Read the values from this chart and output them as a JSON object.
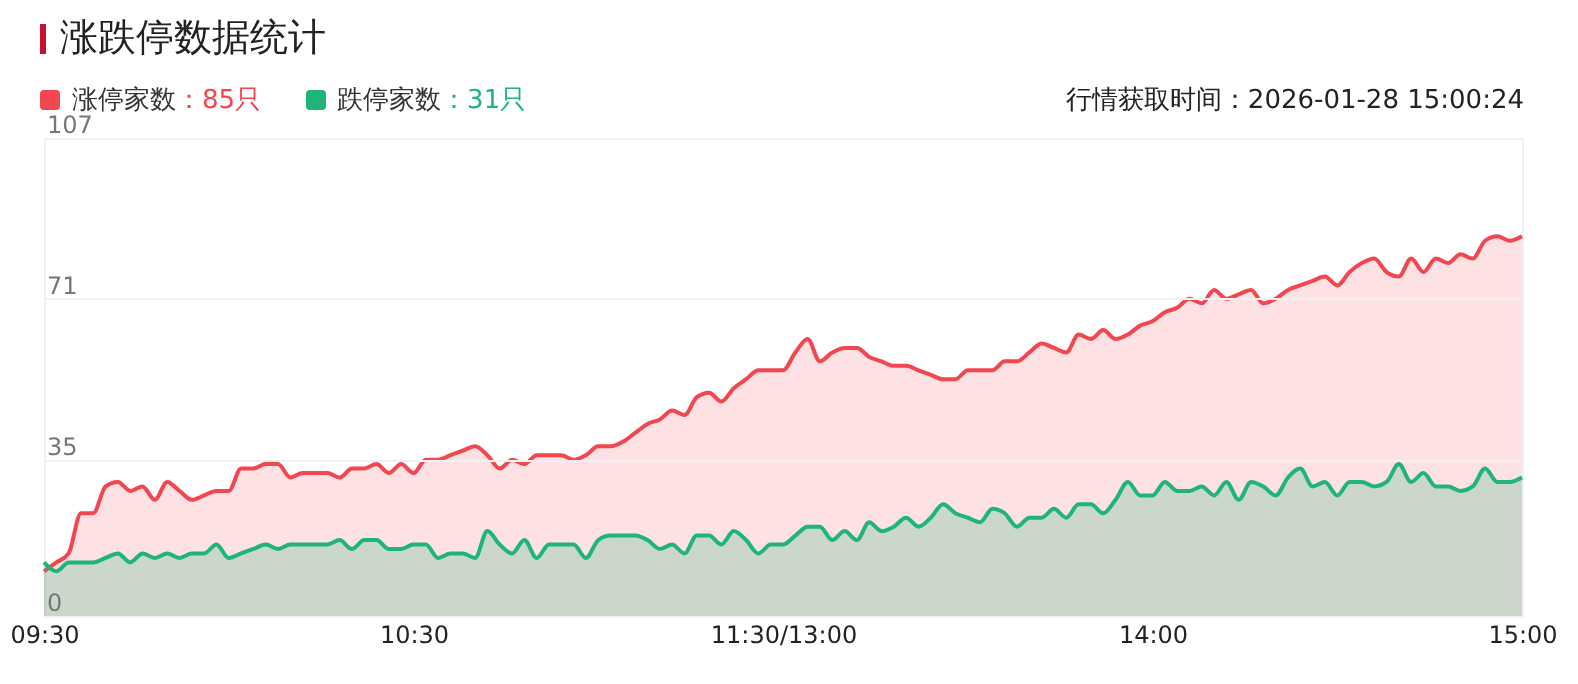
{
  "chart_data": {
    "type": "area",
    "title": "涨跌停数据统计",
    "annotations": [
      "：85只",
      "：31只",
      "行情获取时间：2026-01-28 15:00:24"
    ],
    "categories": [
      "09:30",
      null,
      null,
      null,
      null,
      null,
      null,
      null,
      null,
      null,
      null,
      null,
      null,
      null,
      null,
      null,
      null,
      null,
      null,
      null,
      null,
      null,
      null,
      null,
      null,
      null,
      null,
      null,
      null,
      null,
      "10:30",
      null,
      null,
      null,
      null,
      null,
      null,
      null,
      null,
      null,
      null,
      null,
      null,
      null,
      null,
      null,
      null,
      null,
      null,
      null,
      null,
      null,
      null,
      null,
      null,
      null,
      null,
      null,
      null,
      null,
      "11:30/13:00",
      null,
      null,
      null,
      null,
      null,
      null,
      null,
      null,
      null,
      null,
      null,
      null,
      null,
      null,
      null,
      null,
      null,
      null,
      null,
      null,
      null,
      null,
      null,
      null,
      null,
      null,
      null,
      null,
      null,
      "14:00",
      null,
      null,
      null,
      null,
      null,
      null,
      null,
      null,
      null,
      null,
      null,
      null,
      null,
      null,
      null,
      null,
      null,
      null,
      null,
      null,
      null,
      null,
      null,
      null,
      null,
      null,
      null,
      null,
      null,
      "15:00"
    ],
    "ylim": [
      0,
      107
    ],
    "yticks": [
      0,
      35,
      71,
      107
    ],
    "grid": "y",
    "legend": "top left",
    "series": [
      {
        "name": "涨停家数",
        "color": "#f2474e",
        "values": [
          10,
          12,
          14,
          23,
          23,
          29,
          30,
          28,
          29,
          26,
          30,
          28,
          26,
          27,
          28,
          28,
          33,
          33,
          34,
          34,
          31,
          32,
          32,
          32,
          31,
          33,
          33,
          34,
          32,
          34,
          32,
          35,
          35,
          36,
          37,
          38,
          36,
          33,
          35,
          34,
          36,
          36,
          36,
          35,
          36,
          38,
          38,
          39,
          41,
          43,
          44,
          46,
          45,
          49,
          50,
          48,
          51,
          53,
          55,
          55,
          55,
          59,
          62,
          57,
          59,
          60,
          60,
          58,
          57,
          56,
          56,
          55,
          54,
          53,
          53,
          55,
          55,
          55,
          57,
          57,
          59,
          61,
          60,
          59,
          63,
          62,
          64,
          62,
          63,
          65,
          66,
          68,
          69,
          71,
          70,
          73,
          71,
          72,
          73,
          70,
          71,
          73,
          74,
          75,
          76,
          74,
          77,
          79,
          80,
          77,
          76,
          80,
          77,
          80,
          79,
          81,
          80,
          84,
          85,
          84,
          85
        ]
      },
      {
        "name": "跌停家数",
        "color": "#1fb478",
        "values": [
          12,
          10,
          12,
          12,
          12,
          13,
          14,
          12,
          14,
          13,
          14,
          13,
          14,
          14,
          16,
          13,
          14,
          15,
          16,
          15,
          16,
          16,
          16,
          16,
          17,
          15,
          17,
          17,
          15,
          15,
          16,
          16,
          13,
          14,
          14,
          13,
          19,
          16,
          14,
          17,
          13,
          16,
          16,
          16,
          13,
          17,
          18,
          18,
          18,
          17,
          15,
          16,
          14,
          18,
          18,
          16,
          19,
          17,
          14,
          16,
          16,
          18,
          20,
          20,
          17,
          19,
          17,
          21,
          19,
          20,
          22,
          20,
          22,
          25,
          23,
          22,
          21,
          24,
          23,
          20,
          22,
          22,
          24,
          22,
          25,
          25,
          23,
          26,
          30,
          27,
          27,
          30,
          28,
          28,
          29,
          27,
          30,
          26,
          30,
          29,
          27,
          31,
          33,
          29,
          30,
          27,
          30,
          30,
          29,
          30,
          34,
          30,
          32,
          29,
          29,
          28,
          29,
          33,
          30,
          30,
          31
        ]
      }
    ]
  }
}
